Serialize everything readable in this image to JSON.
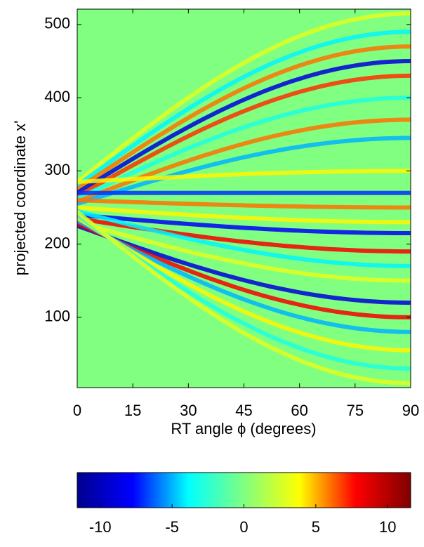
{
  "chart_data": {
    "type": "heatmap",
    "xlabel": "RT angle ϕ (degrees)",
    "ylabel": "projected coordinate x'",
    "xlim": [
      0,
      90
    ],
    "xticks": [
      0,
      15,
      30,
      45,
      60,
      75,
      90
    ],
    "ylim": [
      4,
      521
    ],
    "yticks": [
      100,
      200,
      300,
      400,
      500
    ],
    "background_value": 0,
    "streaks": [
      {
        "x0": 285,
        "x90": 515,
        "value": 3
      },
      {
        "x0": 280,
        "x90": 490,
        "value": -4
      },
      {
        "x0": 275,
        "x90": 470,
        "value": 6
      },
      {
        "x0": 270,
        "x90": 450,
        "value": -9
      },
      {
        "x0": 265,
        "x90": 430,
        "value": 7
      },
      {
        "x0": 262,
        "x90": 400,
        "value": -3
      },
      {
        "x0": 258,
        "x90": 370,
        "value": 6
      },
      {
        "x0": 255,
        "x90": 345,
        "value": -5
      },
      {
        "x0": 285,
        "x90": 300,
        "value": 4
      },
      {
        "x0": 270,
        "x90": 270,
        "value": -7
      },
      {
        "x0": 260,
        "x90": 250,
        "value": 6
      },
      {
        "x0": 250,
        "x90": 230,
        "value": 4
      },
      {
        "x0": 240,
        "x90": 215,
        "value": -8
      },
      {
        "x0": 235,
        "x90": 190,
        "value": 8
      },
      {
        "x0": 245,
        "x90": 170,
        "value": -4
      },
      {
        "x0": 230,
        "x90": 150,
        "value": 3
      },
      {
        "x0": 225,
        "x90": 120,
        "value": -9
      },
      {
        "x0": 228,
        "x90": 100,
        "value": 8
      },
      {
        "x0": 232,
        "x90": 80,
        "value": -5
      },
      {
        "x0": 236,
        "x90": 55,
        "value": 4
      },
      {
        "x0": 240,
        "x90": 30,
        "value": -3
      },
      {
        "x0": 244,
        "x90": 10,
        "value": 3
      }
    ],
    "colormap": [
      "#00008f",
      "#0000ff",
      "#00ffff",
      "#80ff80",
      "#ffff00",
      "#ff0000",
      "#800000"
    ],
    "clim": [
      -11.6,
      11.6
    ],
    "cticks": [
      -10,
      -5,
      0,
      5,
      10
    ]
  }
}
